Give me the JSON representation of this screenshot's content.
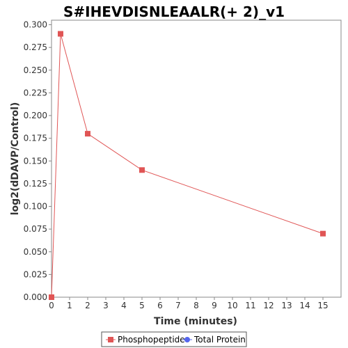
{
  "chart_data": {
    "type": "line",
    "title": "S#IHEVDISNLEAALR(+ 2)_v1",
    "xlabel": "Time (minutes)",
    "ylabel": "log2(dDAVP/Control)",
    "xlim": [
      0,
      16
    ],
    "ylim": [
      0,
      0.305
    ],
    "x_ticks": [
      "0",
      "1",
      "2",
      "3",
      "4",
      "5",
      "6",
      "7",
      "8",
      "9",
      "10",
      "11",
      "12",
      "13",
      "14",
      "15"
    ],
    "y_ticks": [
      "0.000",
      "0.025",
      "0.050",
      "0.075",
      "0.100",
      "0.125",
      "0.150",
      "0.175",
      "0.200",
      "0.225",
      "0.250",
      "0.275",
      "0.300"
    ],
    "grid": false,
    "legend_position": "bottom",
    "series": [
      {
        "name": "Phosphopeptide",
        "color": "#e05555",
        "marker": "square",
        "x": [
          0,
          0.5,
          2,
          5,
          15
        ],
        "y": [
          0.0,
          0.29,
          0.18,
          0.14,
          0.07
        ]
      },
      {
        "name": "Total Protein",
        "color": "#5566ee",
        "marker": "circle",
        "x": [],
        "y": []
      }
    ]
  }
}
